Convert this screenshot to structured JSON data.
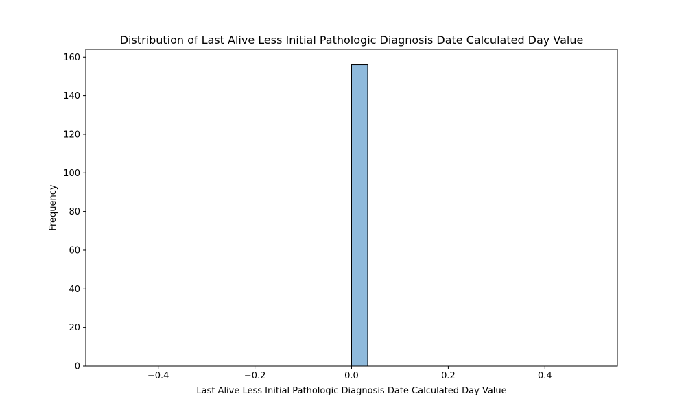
{
  "chart_data": {
    "type": "bar",
    "title": "Distribution of Last Alive Less Initial Pathologic Diagnosis Date Calculated Day Value",
    "xlabel": "Last Alive Less Initial Pathologic Diagnosis Date Calculated Day Value",
    "ylabel": "Frequency",
    "xlim": [
      -0.55,
      0.55
    ],
    "ylim": [
      0,
      164
    ],
    "xticks": [
      -0.4,
      -0.2,
      0.0,
      0.2,
      0.4
    ],
    "xtick_labels": [
      "−0.4",
      "−0.2",
      "0.0",
      "0.2",
      "0.4"
    ],
    "yticks": [
      0,
      20,
      40,
      60,
      80,
      100,
      120,
      140,
      160
    ],
    "ytick_labels": [
      "0",
      "20",
      "40",
      "60",
      "80",
      "100",
      "120",
      "140",
      "160"
    ],
    "bins": {
      "start": -0.5,
      "end": 0.5,
      "count": 30,
      "values": [
        0,
        0,
        0,
        0,
        0,
        0,
        0,
        0,
        0,
        0,
        0,
        0,
        0,
        0,
        0,
        156,
        0,
        0,
        0,
        0,
        0,
        0,
        0,
        0,
        0,
        0,
        0,
        0,
        0,
        0
      ]
    },
    "grid": false,
    "legend": "none",
    "bar_color": "#8fbadc",
    "edge_color": "#000000"
  }
}
